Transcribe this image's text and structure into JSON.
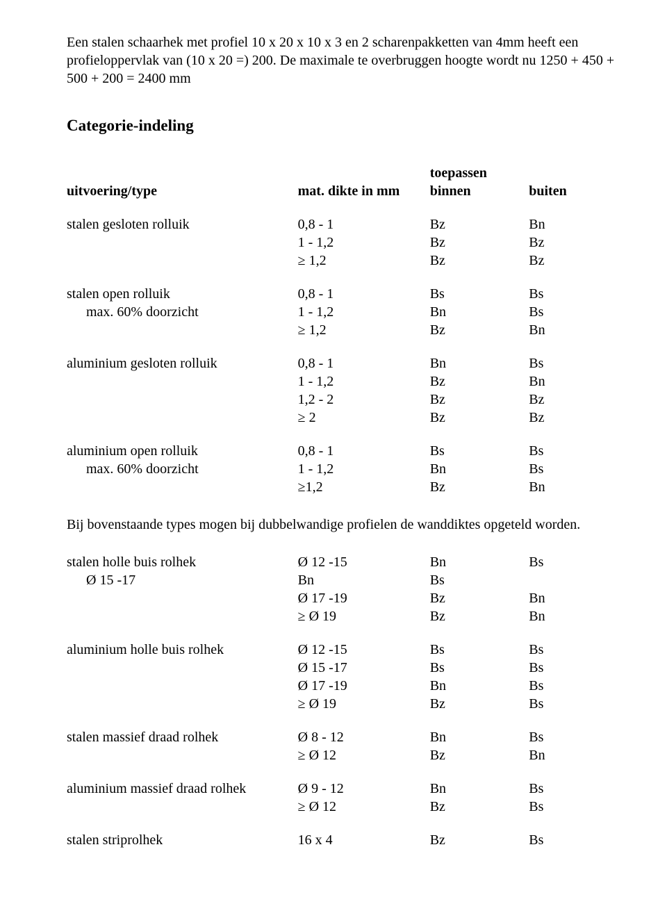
{
  "intro": {
    "p1": "Een stalen schaarhek met profiel 10 x 20 x 10 x 3 en 2 scharenpakketten van 4mm heeft een profieloppervlak van (10 x 20 =) 200. De maximale te overbruggen hoogte wordt nu 1250 + 450 + 500 + 200 = 2400 mm"
  },
  "heading": "Categorie-indeling",
  "table": {
    "header": {
      "c1": "uitvoering/type",
      "c2": "mat. dikte in mm",
      "c3_top": "toepassen",
      "c3": "binnen",
      "c4": "buiten"
    },
    "groups": [
      {
        "label": "stalen gesloten rolluik",
        "sub": "",
        "rows": [
          [
            "0,8 - 1",
            "Bz",
            "Bn"
          ],
          [
            "1 - 1,2",
            "Bz",
            "Bz"
          ],
          [
            "≥ 1,2",
            "Bz",
            "Bz"
          ]
        ]
      },
      {
        "label": "stalen open rolluik",
        "sub": "max. 60% doorzicht",
        "rows": [
          [
            "0,8 - 1",
            "Bs",
            "Bs"
          ],
          [
            "1 - 1,2",
            "Bn",
            "Bs"
          ],
          [
            "≥ 1,2",
            "Bz",
            "Bn"
          ]
        ]
      },
      {
        "label": "aluminium gesloten rolluik",
        "sub": "",
        "rows": [
          [
            "0,8 - 1",
            "Bn",
            "Bs"
          ],
          [
            "1 - 1,2",
            "Bz",
            "Bn"
          ],
          [
            "1,2 - 2",
            "Bz",
            "Bz"
          ],
          [
            "≥ 2",
            "Bz",
            "Bz"
          ]
        ]
      },
      {
        "label": "aluminium open rolluik",
        "sub": "max. 60% doorzicht",
        "rows": [
          [
            "0,8 - 1",
            "Bs",
            "Bs"
          ],
          [
            "1 - 1,2",
            "Bn",
            "Bs"
          ],
          [
            "≥1,2",
            "Bz",
            "Bn"
          ]
        ]
      }
    ],
    "note": "Bij bovenstaande types mogen bij dubbelwandige profielen de wanddiktes opgeteld worden.",
    "groups2": [
      {
        "label": "stalen holle buis rolhek",
        "sub_inline": "Ø 15 -17",
        "rows": [
          [
            "Ø 12 -15",
            "Bn",
            "Bs"
          ],
          [
            "Bn",
            "Bs",
            ""
          ],
          [
            "Ø 17 -19",
            "Bz",
            "Bn"
          ],
          [
            "≥ Ø 19",
            "Bz",
            "Bn"
          ]
        ]
      },
      {
        "label": "aluminium holle buis rolhek",
        "sub": "",
        "rows": [
          [
            "Ø 12 -15",
            "Bs",
            "Bs"
          ],
          [
            "Ø 15 -17",
            "Bs",
            "Bs"
          ],
          [
            "Ø 17 -19",
            "Bn",
            "Bs"
          ],
          [
            "≥ Ø 19",
            "Bz",
            "Bs"
          ]
        ]
      },
      {
        "label": "stalen massief draad rolhek",
        "sub": "",
        "rows": [
          [
            "Ø 8 - 12",
            "Bn",
            "Bs"
          ],
          [
            "≥ Ø 12",
            "Bz",
            "Bn"
          ]
        ]
      },
      {
        "label": "aluminium massief draad rolhek",
        "sub": "",
        "rows": [
          [
            "Ø 9 - 12",
            "Bn",
            "Bs"
          ],
          [
            "≥ Ø 12",
            "Bz",
            "Bs"
          ]
        ]
      },
      {
        "label": "stalen striprolhek",
        "sub": "",
        "rows": [
          [
            "16 x 4",
            "Bz",
            "Bs"
          ]
        ]
      }
    ]
  }
}
